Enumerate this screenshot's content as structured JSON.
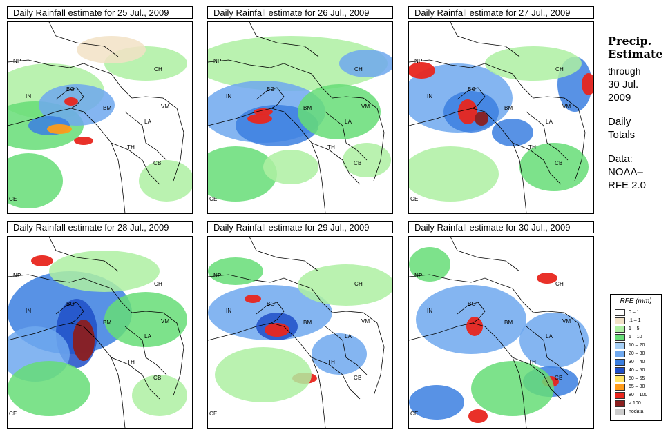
{
  "panels": [
    {
      "title": "Daily Rainfall estimate for  25 Jul., 2009",
      "labels": {
        "np": "NP",
        "ch": "CH",
        "in": "IN",
        "bg": "BG",
        "bm": "BM",
        "vm": "VM",
        "la": "LA",
        "th": "TH",
        "cb": "CB",
        "ce": "CE"
      }
    },
    {
      "title": "Daily Rainfall estimate for  26 Jul., 2009",
      "labels": {
        "np": "NP",
        "ch": "CH",
        "in": "IN",
        "bg": "BG",
        "bm": "BM",
        "vm": "VM",
        "la": "LA",
        "th": "TH",
        "cb": "CB",
        "ce": "CE"
      }
    },
    {
      "title": "Daily Rainfall estimate for  27 Jul., 2009",
      "labels": {
        "np": "NP",
        "ch": "CH",
        "in": "IN",
        "bg": "BG",
        "bm": "BM",
        "vm": "VM",
        "la": "LA",
        "th": "TH",
        "cb": "CB",
        "ce": "CE"
      }
    },
    {
      "title": "Daily Rainfall estimate for  28 Jul., 2009",
      "labels": {
        "np": "NP",
        "ch": "CH",
        "in": "IN",
        "bg": "BG",
        "bm": "BM",
        "vm": "VM",
        "la": "LA",
        "th": "TH",
        "cb": "CB",
        "ce": "CE"
      }
    },
    {
      "title": "Daily Rainfall estimate for  29 Jul., 2009",
      "labels": {
        "np": "NP",
        "ch": "CH",
        "in": "IN",
        "bg": "BG",
        "bm": "BM",
        "vm": "VM",
        "la": "LA",
        "th": "TH",
        "cb": "CB",
        "ce": "CE"
      }
    },
    {
      "title": "Daily Rainfall estimate for  30 Jul., 2009",
      "labels": {
        "np": "NP",
        "ch": "CH",
        "in": "IN",
        "bg": "BG",
        "bm": "BM",
        "vm": "VM",
        "la": "LA",
        "th": "TH",
        "cb": "CB",
        "ce": "CE"
      }
    }
  ],
  "side": {
    "heading_1": "Precip.",
    "heading_2": "Estimate",
    "through": "through",
    "date_1": "30 Jul.",
    "date_2": "2009",
    "totals_1": "Daily",
    "totals_2": "Totals",
    "data_1": "Data:",
    "data_2": "NOAA–",
    "data_3": "RFE 2.0"
  },
  "legend": {
    "title": "RFE (mm)",
    "items": [
      {
        "label": "0 – 1",
        "color": "#ffffff"
      },
      {
        "label": ".1 – 1",
        "color": "#f2e2c6"
      },
      {
        "label": "1 – 5",
        "color": "#aef0a2"
      },
      {
        "label": "5 – 10",
        "color": "#66dd77"
      },
      {
        "label": "10 – 20",
        "color": "#a6cff5"
      },
      {
        "label": "20 – 30",
        "color": "#6fa8ee"
      },
      {
        "label": "30 – 40",
        "color": "#3b7fe0"
      },
      {
        "label": "40 – 50",
        "color": "#1f4fc8"
      },
      {
        "label": "50 – 65",
        "color": "#ffe566"
      },
      {
        "label": "65 – 80",
        "color": "#ff9c1a"
      },
      {
        "label": "80 – 100",
        "color": "#e8261e"
      },
      {
        "label": "> 100",
        "color": "#8b1f1f"
      },
      {
        "label": "nodata",
        "color": "#cccccc"
      }
    ]
  }
}
